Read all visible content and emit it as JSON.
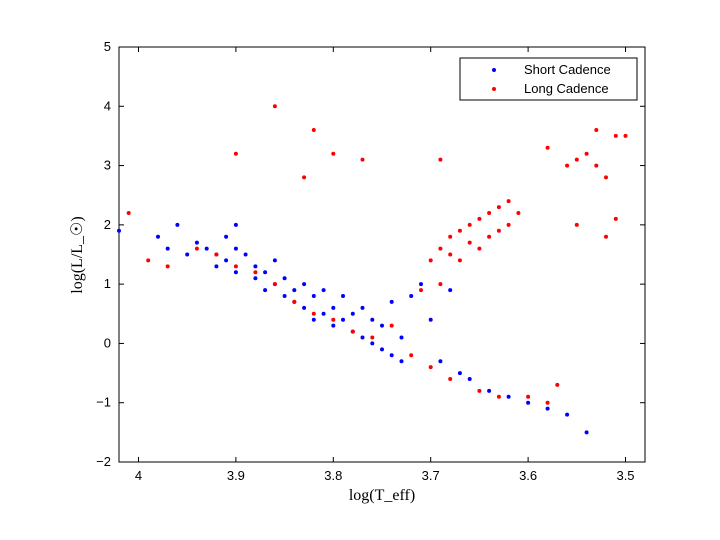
{
  "chart_data": {
    "type": "scatter",
    "title": "",
    "xlabel": "log(T_eff)",
    "ylabel": "log(L/L_☉)",
    "xlim": [
      4.02,
      3.48
    ],
    "ylim": [
      -2,
      5
    ],
    "x_reversed": true,
    "x_ticks": [
      "4",
      "3.9",
      "3.8",
      "3.7",
      "3.6",
      "3.5"
    ],
    "x_tick_values": [
      4.0,
      3.9,
      3.8,
      3.7,
      3.6,
      3.5
    ],
    "y_ticks": [
      "−2",
      "−1",
      "0",
      "1",
      "2",
      "3",
      "4",
      "5"
    ],
    "y_tick_values": [
      -2,
      -1,
      0,
      1,
      2,
      3,
      4,
      5
    ],
    "legend_position": "top-right",
    "series": [
      {
        "name": "Short Cadence",
        "color": "#0000ff",
        "points": [
          [
            4.02,
            1.9
          ],
          [
            3.98,
            1.8
          ],
          [
            3.97,
            1.6
          ],
          [
            3.96,
            2.0
          ],
          [
            3.95,
            1.5
          ],
          [
            3.94,
            1.7
          ],
          [
            3.93,
            1.6
          ],
          [
            3.92,
            1.5
          ],
          [
            3.92,
            1.3
          ],
          [
            3.91,
            1.8
          ],
          [
            3.91,
            1.4
          ],
          [
            3.9,
            2.0
          ],
          [
            3.9,
            1.6
          ],
          [
            3.9,
            1.2
          ],
          [
            3.89,
            1.5
          ],
          [
            3.88,
            1.3
          ],
          [
            3.88,
            1.1
          ],
          [
            3.87,
            1.2
          ],
          [
            3.87,
            0.9
          ],
          [
            3.86,
            1.0
          ],
          [
            3.86,
            1.4
          ],
          [
            3.85,
            0.8
          ],
          [
            3.85,
            1.1
          ],
          [
            3.84,
            0.7
          ],
          [
            3.84,
            0.9
          ],
          [
            3.83,
            0.6
          ],
          [
            3.83,
            1.0
          ],
          [
            3.82,
            0.8
          ],
          [
            3.82,
            0.4
          ],
          [
            3.81,
            0.5
          ],
          [
            3.81,
            0.9
          ],
          [
            3.8,
            0.3
          ],
          [
            3.8,
            0.6
          ],
          [
            3.79,
            0.4
          ],
          [
            3.79,
            0.8
          ],
          [
            3.78,
            0.2
          ],
          [
            3.78,
            0.5
          ],
          [
            3.77,
            0.1
          ],
          [
            3.77,
            0.6
          ],
          [
            3.76,
            0.0
          ],
          [
            3.76,
            0.4
          ],
          [
            3.75,
            -0.1
          ],
          [
            3.75,
            0.3
          ],
          [
            3.74,
            -0.2
          ],
          [
            3.74,
            0.7
          ],
          [
            3.73,
            0.1
          ],
          [
            3.73,
            -0.3
          ],
          [
            3.72,
            0.8
          ],
          [
            3.71,
            1.0
          ],
          [
            3.7,
            0.4
          ],
          [
            3.69,
            -0.3
          ],
          [
            3.68,
            0.9
          ],
          [
            3.67,
            -0.5
          ],
          [
            3.66,
            -0.6
          ],
          [
            3.64,
            -0.8
          ],
          [
            3.62,
            -0.9
          ],
          [
            3.6,
            -1.0
          ],
          [
            3.58,
            -1.1
          ],
          [
            3.56,
            -1.2
          ],
          [
            3.54,
            -1.5
          ]
        ]
      },
      {
        "name": "Long Cadence",
        "color": "#ff0000",
        "points": [
          [
            4.01,
            2.2
          ],
          [
            3.99,
            1.4
          ],
          [
            3.97,
            1.3
          ],
          [
            3.94,
            1.6
          ],
          [
            3.92,
            1.5
          ],
          [
            3.9,
            1.3
          ],
          [
            3.88,
            1.2
          ],
          [
            3.86,
            1.0
          ],
          [
            3.84,
            0.7
          ],
          [
            3.82,
            0.5
          ],
          [
            3.8,
            0.4
          ],
          [
            3.78,
            0.2
          ],
          [
            3.76,
            0.1
          ],
          [
            3.74,
            0.3
          ],
          [
            3.86,
            4.0
          ],
          [
            3.82,
            3.6
          ],
          [
            3.9,
            3.2
          ],
          [
            3.8,
            3.2
          ],
          [
            3.77,
            3.1
          ],
          [
            3.83,
            2.8
          ],
          [
            3.69,
            3.1
          ],
          [
            3.7,
            1.4
          ],
          [
            3.69,
            1.6
          ],
          [
            3.68,
            1.8
          ],
          [
            3.68,
            1.5
          ],
          [
            3.67,
            1.9
          ],
          [
            3.67,
            1.4
          ],
          [
            3.66,
            2.0
          ],
          [
            3.66,
            1.7
          ],
          [
            3.65,
            2.1
          ],
          [
            3.65,
            1.6
          ],
          [
            3.64,
            2.2
          ],
          [
            3.64,
            1.8
          ],
          [
            3.63,
            2.3
          ],
          [
            3.63,
            1.9
          ],
          [
            3.62,
            2.4
          ],
          [
            3.62,
            2.0
          ],
          [
            3.61,
            2.2
          ],
          [
            3.69,
            1.0
          ],
          [
            3.71,
            0.9
          ],
          [
            3.72,
            -0.2
          ],
          [
            3.7,
            -0.4
          ],
          [
            3.68,
            -0.6
          ],
          [
            3.65,
            -0.8
          ],
          [
            3.63,
            -0.9
          ],
          [
            3.6,
            -0.9
          ],
          [
            3.58,
            -1.0
          ],
          [
            3.57,
            -0.7
          ],
          [
            3.56,
            3.0
          ],
          [
            3.55,
            3.1
          ],
          [
            3.54,
            3.2
          ],
          [
            3.53,
            3.0
          ],
          [
            3.52,
            2.8
          ],
          [
            3.51,
            3.5
          ],
          [
            3.5,
            3.5
          ],
          [
            3.53,
            3.6
          ],
          [
            3.55,
            2.0
          ],
          [
            3.52,
            1.8
          ],
          [
            3.51,
            2.1
          ],
          [
            3.58,
            3.3
          ]
        ]
      }
    ]
  }
}
